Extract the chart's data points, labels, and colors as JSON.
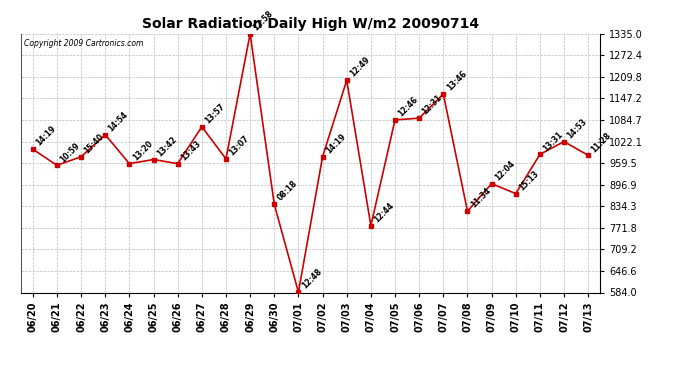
{
  "title": "Solar Radiation Daily High W/m2 20090714",
  "copyright": "Copyright 2009 Cartronics.com",
  "background_color": "#ffffff",
  "plot_bg_color": "#ffffff",
  "grid_color": "#bbbbbb",
  "line_color": "#cc0000",
  "marker_color": "#cc0000",
  "ylim": [
    584.0,
    1335.0
  ],
  "yticks": [
    584.0,
    646.6,
    709.2,
    771.8,
    834.3,
    896.9,
    959.5,
    1022.1,
    1084.7,
    1147.2,
    1209.8,
    1272.4,
    1335.0
  ],
  "dates": [
    "06/20",
    "06/21",
    "06/22",
    "06/23",
    "06/24",
    "06/25",
    "06/26",
    "06/27",
    "06/28",
    "06/29",
    "06/30",
    "07/01",
    "07/02",
    "07/03",
    "07/04",
    "07/05",
    "07/06",
    "07/07",
    "07/08",
    "07/09",
    "07/10",
    "07/11",
    "07/12",
    "07/13"
  ],
  "values": [
    1000,
    953,
    978,
    1042,
    958,
    970,
    958,
    1065,
    972,
    1335,
    840,
    585,
    978,
    1200,
    778,
    1085,
    1090,
    1160,
    820,
    900,
    871,
    985,
    1022,
    982
  ],
  "times": [
    "14:19",
    "10:59",
    "15:40",
    "14:54",
    "13:20",
    "13:42",
    "13:43",
    "13:57",
    "13:07",
    "12:58",
    "08:18",
    "12:48",
    "14:19",
    "12:49",
    "12:44",
    "12:46",
    "12:31",
    "13:46",
    "11:34",
    "12:04",
    "15:13",
    "13:31",
    "14:53",
    "11:28"
  ]
}
